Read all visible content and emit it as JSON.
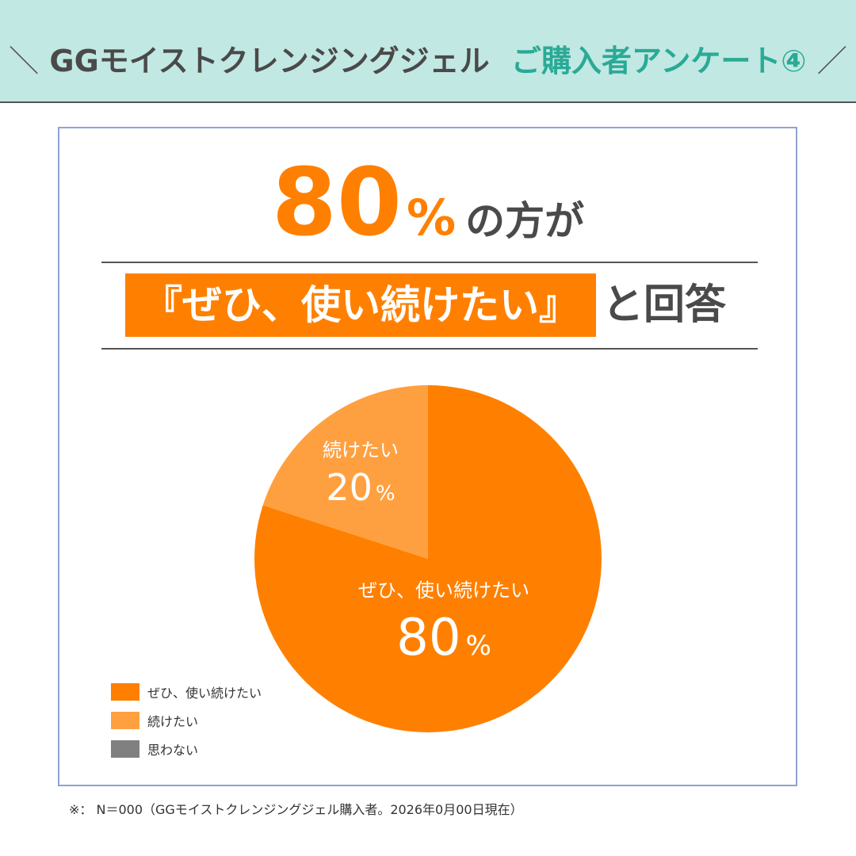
{
  "header": {
    "slash_left": "＼",
    "title": "GGモイストクレンジングジェル",
    "subtitle": "ご購入者アンケート④",
    "slash_right": "／"
  },
  "headline": {
    "number": "80",
    "unit": "%",
    "rest": "の方が",
    "banner": "『ぜひ、使い続けたい』",
    "after": "と回答"
  },
  "colors": {
    "accent": "#ff8000",
    "secondary": "#ffa040",
    "neutral": "#808080",
    "header_bg": "#c2e8e3",
    "header_accent": "#2aaa96",
    "frame": "#8fa3cf"
  },
  "chart_data": {
    "type": "pie",
    "categories": [
      "ぜひ、使い続けたい",
      "続けたい",
      "思わない"
    ],
    "values": [
      80,
      20,
      0
    ],
    "colors": [
      "#ff8000",
      "#ffa040",
      "#808080"
    ],
    "slice_labels": [
      {
        "name": "ぜひ、使い続けたい",
        "value": "80",
        "unit": "%"
      },
      {
        "name": "続けたい",
        "value": "20",
        "unit": "%"
      }
    ],
    "legend": [
      "ぜひ、使い続けたい",
      "続けたい",
      "思わない"
    ],
    "legend_position": "bottom-left"
  },
  "footnote": "※： N＝000（GGモイストクレンジングジェル購入者。2026年0月00日現在）"
}
